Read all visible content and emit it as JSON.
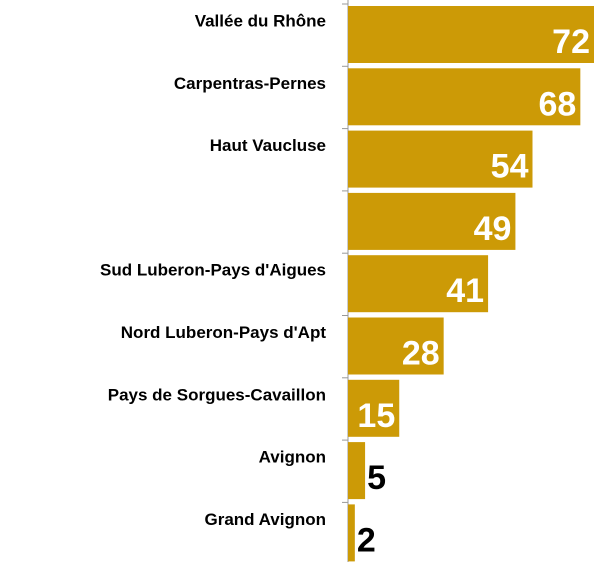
{
  "chart_data": {
    "type": "bar",
    "orientation": "horizontal",
    "categories": [
      "Vallée du Rhône",
      "Carpentras-Pernes",
      "Haut Vaucluse",
      null,
      "Sud Luberon-Pays d'Aigues",
      "Nord Luberon-Pays d'Apt",
      "Pays de Sorgues-Cavaillon",
      "Avignon",
      "Grand Avignon"
    ],
    "values": [
      72,
      68,
      54,
      49,
      41,
      28,
      15,
      5,
      2
    ],
    "color": "#cc9a06",
    "xlim": [
      0,
      72
    ]
  }
}
